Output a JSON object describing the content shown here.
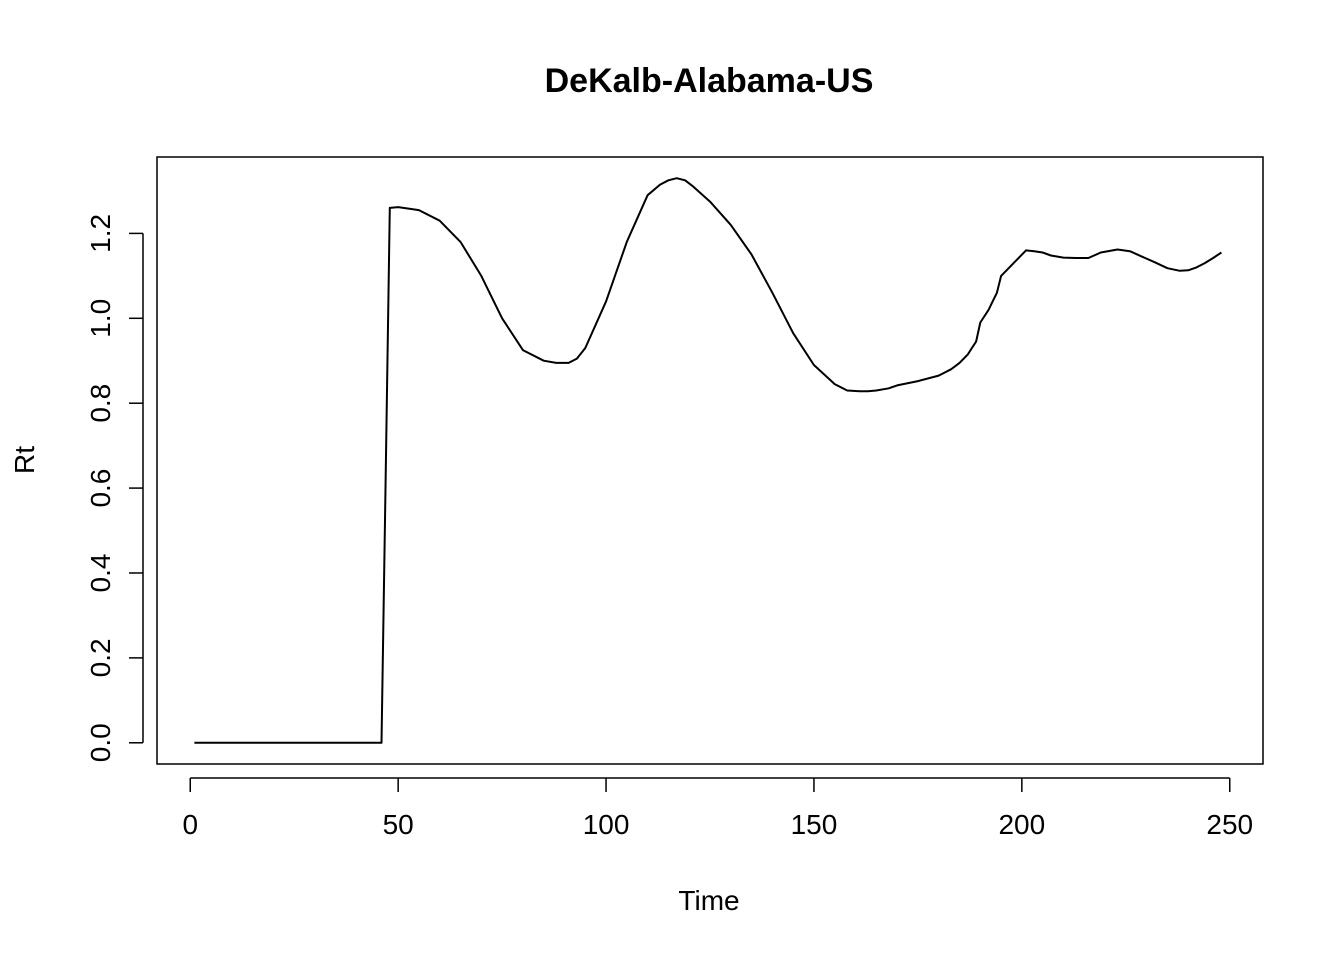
{
  "chart_data": {
    "type": "line",
    "title": "DeKalb-Alabama-US",
    "xlabel": "Time",
    "ylabel": "Rt",
    "xlim": [
      -8,
      258
    ],
    "ylim": [
      -0.05,
      1.38
    ],
    "x_ticks": [
      0,
      50,
      100,
      150,
      200,
      250
    ],
    "y_ticks": [
      0.0,
      0.2,
      0.4,
      0.6,
      0.8,
      1.0,
      1.2
    ],
    "x_tick_labels": [
      "0",
      "50",
      "100",
      "150",
      "200",
      "250"
    ],
    "y_tick_labels": [
      "0.0",
      "0.2",
      "0.4",
      "0.6",
      "0.8",
      "1.0",
      "1.2"
    ],
    "grid": false,
    "series": [
      {
        "color": "#000000",
        "x": [
          1,
          10,
          20,
          30,
          40,
          45,
          46,
          47,
          48,
          50,
          55,
          60,
          65,
          70,
          75,
          80,
          85,
          88,
          91,
          93,
          95,
          100,
          105,
          110,
          113,
          115,
          117,
          119,
          121,
          125,
          130,
          135,
          140,
          145,
          150,
          155,
          158,
          161,
          163,
          165,
          168,
          170,
          175,
          180,
          183,
          185,
          187,
          188,
          189,
          190,
          192,
          193,
          194,
          195,
          197,
          199,
          201,
          203,
          205,
          207,
          210,
          213,
          216,
          219,
          223,
          226,
          229,
          232,
          235,
          238,
          240,
          242,
          244,
          246,
          248
        ],
        "y": [
          0.0,
          0.0,
          0.0,
          0.0,
          0.0,
          0.0,
          0.0,
          0.63,
          1.26,
          1.262,
          1.255,
          1.23,
          1.18,
          1.1,
          1.0,
          0.925,
          0.9,
          0.895,
          0.895,
          0.905,
          0.93,
          1.04,
          1.18,
          1.29,
          1.315,
          1.325,
          1.33,
          1.325,
          1.31,
          1.275,
          1.22,
          1.15,
          1.06,
          0.965,
          0.89,
          0.845,
          0.83,
          0.828,
          0.828,
          0.83,
          0.835,
          0.842,
          0.852,
          0.865,
          0.88,
          0.895,
          0.915,
          0.93,
          0.945,
          0.99,
          1.02,
          1.04,
          1.06,
          1.1,
          1.12,
          1.14,
          1.16,
          1.158,
          1.155,
          1.148,
          1.143,
          1.142,
          1.142,
          1.155,
          1.162,
          1.158,
          1.145,
          1.132,
          1.118,
          1.112,
          1.113,
          1.12,
          1.13,
          1.142,
          1.155
        ]
      }
    ]
  }
}
